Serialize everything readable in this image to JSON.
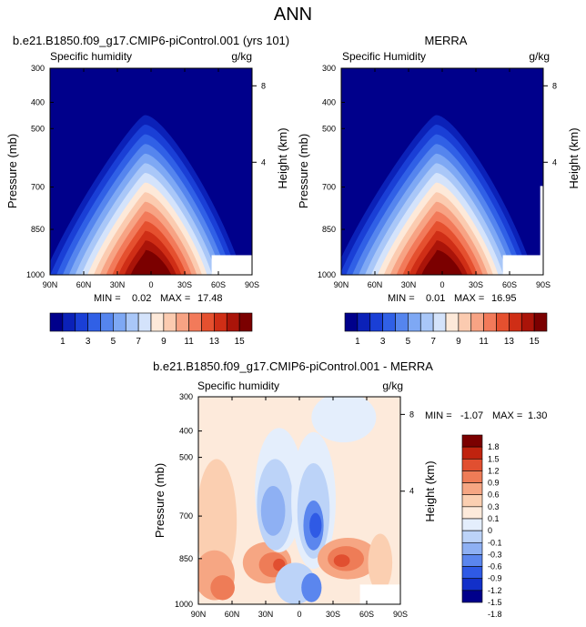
{
  "page": {
    "title": "ANN"
  },
  "colors": {
    "abs_palette": [
      "#00008b",
      "#0b21b8",
      "#1a3fd6",
      "#3060e6",
      "#5585ee",
      "#7ea8f4",
      "#a9c7f8",
      "#d4e3fb",
      "#fde9d9",
      "#fbcbb0",
      "#f7a384",
      "#f27a5a",
      "#e5502f",
      "#cf2e16",
      "#aa1409",
      "#7b0000"
    ],
    "diff_palette": [
      "#00008b",
      "#1230c9",
      "#2f5ae5",
      "#5b86ee",
      "#8eb0f3",
      "#bcd3f8",
      "#e4eefc",
      "#fdeadb",
      "#fbcfb1",
      "#f6a683",
      "#ee7c57",
      "#e14f30",
      "#c0230f",
      "#7b0000"
    ]
  },
  "chart_data": [
    {
      "type": "heatmap",
      "title": "b.e21.B1850.f09_g17.CMIP6-piControl.001 (yrs 101)",
      "field_label": "Specific humidity",
      "units": "g/kg",
      "ylabel": "Pressure (mb)",
      "y2label": "Height (km)",
      "x_ticks": [
        "90N",
        "60N",
        "30N",
        "0",
        "30S",
        "60S",
        "90S"
      ],
      "y_ticks": [
        "300",
        "400",
        "500",
        "700",
        "850",
        "1000"
      ],
      "y2_ticks": [
        "8",
        "4"
      ],
      "stats": {
        "min_label": "MIN =",
        "min": "0.02",
        "max_label": "MAX =",
        "max": "17.48"
      },
      "peak": 17.48,
      "colorbar_labels": [
        "1",
        "3",
        "5",
        "7",
        "9",
        "11",
        "13",
        "15"
      ]
    },
    {
      "type": "heatmap",
      "title": "MERRA",
      "field_label": "Specific Humidity",
      "units": "g/kg",
      "ylabel": "Pressure (mb)",
      "y2label": "Height (km)",
      "x_ticks": [
        "90N",
        "60N",
        "30N",
        "0",
        "30S",
        "60S",
        "90S"
      ],
      "y_ticks": [
        "300",
        "400",
        "500",
        "700",
        "850",
        "1000"
      ],
      "y2_ticks": [
        "8",
        "4"
      ],
      "stats": {
        "min_label": "MIN =",
        "min": "0.01",
        "max_label": "MAX =",
        "max": "16.95"
      },
      "peak": 16.95
    },
    {
      "type": "heatmap",
      "title": "b.e21.B1850.f09_g17.CMIP6-piControl.001 - MERRA",
      "field_label": "Specific humidity",
      "units": "g/kg",
      "ylabel": "Pressure (mb)",
      "y2label": "Height (km)",
      "x_ticks": [
        "90N",
        "60N",
        "30N",
        "0",
        "30S",
        "60S",
        "90S"
      ],
      "y_ticks": [
        "300",
        "400",
        "500",
        "700",
        "850",
        "1000"
      ],
      "y2_ticks": [
        "8",
        "4"
      ],
      "stats": {
        "min_label": "MIN =",
        "min": "-1.07",
        "max_label": "MAX =",
        "max": "1.30"
      },
      "colorbar_labels": [
        "1.8",
        "1.5",
        "1.2",
        "0.9",
        "0.6",
        "0.3",
        "0.1",
        "0",
        "-0.1",
        "-0.3",
        "-0.6",
        "-0.9",
        "-1.2",
        "-1.5",
        "-1.8"
      ]
    }
  ]
}
